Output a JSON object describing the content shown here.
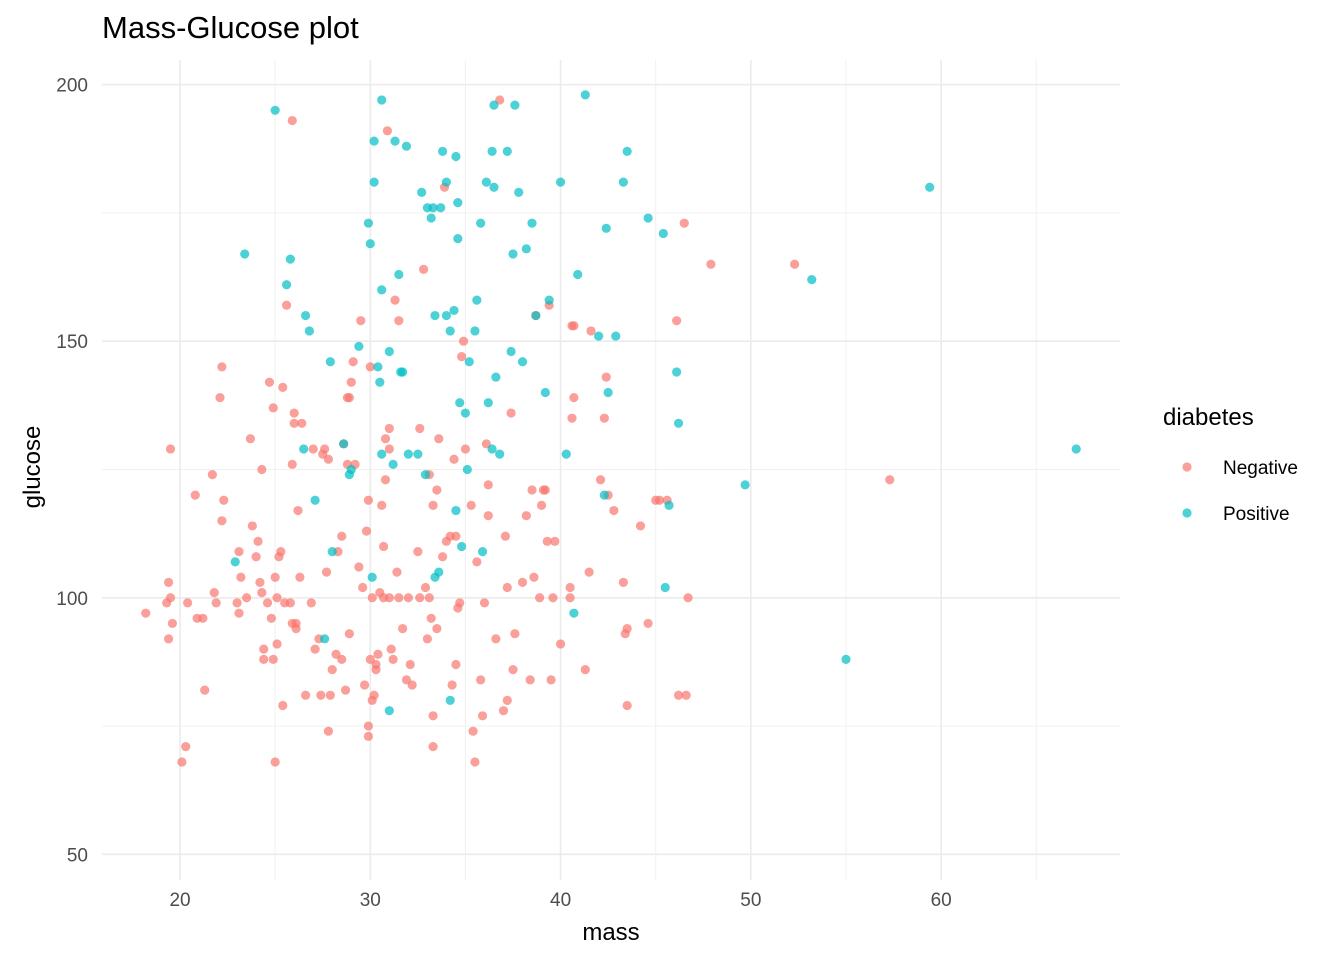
{
  "chart_data": {
    "type": "scatter",
    "title": "Mass-Glucose plot",
    "xlabel": "mass",
    "ylabel": "glucose",
    "xlim": [
      15.9,
      69.4
    ],
    "ylim": [
      45,
      204.8
    ],
    "x_ticks": [
      20,
      30,
      40,
      50,
      60
    ],
    "y_ticks": [
      50,
      100,
      150,
      200
    ],
    "grid": true,
    "legend": {
      "title": "diabetes",
      "position": "right"
    },
    "series": [
      {
        "name": "Negative",
        "color": "#F8766D",
        "points": [
          [
            18.2,
            97
          ],
          [
            19.3,
            99
          ],
          [
            19.4,
            103
          ],
          [
            19.5,
            100
          ],
          [
            19.6,
            95
          ],
          [
            19.4,
            92
          ],
          [
            19.5,
            129
          ],
          [
            20.1,
            68
          ],
          [
            20.3,
            71
          ],
          [
            20.4,
            99
          ],
          [
            20.8,
            120
          ],
          [
            20.9,
            96
          ],
          [
            21.2,
            96
          ],
          [
            21.3,
            82
          ],
          [
            21.7,
            124
          ],
          [
            21.8,
            101
          ],
          [
            21.9,
            99
          ],
          [
            22.1,
            139
          ],
          [
            22.2,
            145
          ],
          [
            22.3,
            119
          ],
          [
            22.2,
            115
          ],
          [
            23.0,
            99
          ],
          [
            23.1,
            97
          ],
          [
            23.1,
            109
          ],
          [
            23.2,
            104
          ],
          [
            23.5,
            100
          ],
          [
            23.7,
            131
          ],
          [
            23.8,
            114
          ],
          [
            24.0,
            108
          ],
          [
            24.1,
            111
          ],
          [
            24.2,
            103
          ],
          [
            24.3,
            101
          ],
          [
            24.3,
            125
          ],
          [
            24.4,
            90
          ],
          [
            24.4,
            88
          ],
          [
            24.6,
            99
          ],
          [
            24.7,
            142
          ],
          [
            24.8,
            96
          ],
          [
            24.9,
            137
          ],
          [
            24.9,
            88
          ],
          [
            25.0,
            68
          ],
          [
            25.0,
            104
          ],
          [
            25.1,
            100
          ],
          [
            25.1,
            91
          ],
          [
            25.2,
            108
          ],
          [
            25.3,
            109
          ],
          [
            25.4,
            79
          ],
          [
            25.4,
            141
          ],
          [
            25.5,
            99
          ],
          [
            25.6,
            157
          ],
          [
            25.8,
            99
          ],
          [
            25.9,
            193
          ],
          [
            25.9,
            126
          ],
          [
            25.9,
            95
          ],
          [
            26.0,
            136
          ],
          [
            26.0,
            134
          ],
          [
            26.1,
            94
          ],
          [
            26.1,
            95
          ],
          [
            26.2,
            117
          ],
          [
            26.3,
            104
          ],
          [
            26.4,
            134
          ],
          [
            26.6,
            81
          ],
          [
            26.9,
            99
          ],
          [
            27.0,
            129
          ],
          [
            27.1,
            90
          ],
          [
            27.3,
            92
          ],
          [
            27.4,
            81
          ],
          [
            27.5,
            128
          ],
          [
            27.6,
            129
          ],
          [
            27.7,
            105
          ],
          [
            27.8,
            127
          ],
          [
            27.8,
            74
          ],
          [
            27.9,
            81
          ],
          [
            28.0,
            86
          ],
          [
            28.2,
            89
          ],
          [
            28.3,
            109
          ],
          [
            28.5,
            88
          ],
          [
            28.5,
            112
          ],
          [
            28.6,
            130
          ],
          [
            28.7,
            82
          ],
          [
            28.8,
            139
          ],
          [
            28.8,
            126
          ],
          [
            28.9,
            93
          ],
          [
            28.9,
            139
          ],
          [
            29.0,
            142
          ],
          [
            29.1,
            146
          ],
          [
            29.2,
            126
          ],
          [
            29.4,
            106
          ],
          [
            29.5,
            154
          ],
          [
            29.6,
            102
          ],
          [
            29.7,
            83
          ],
          [
            29.8,
            113
          ],
          [
            29.9,
            75
          ],
          [
            29.9,
            73
          ],
          [
            29.9,
            119
          ],
          [
            30.0,
            88
          ],
          [
            30.0,
            145
          ],
          [
            30.1,
            80
          ],
          [
            30.1,
            100
          ],
          [
            30.2,
            81
          ],
          [
            30.3,
            87
          ],
          [
            30.3,
            86
          ],
          [
            30.4,
            89
          ],
          [
            30.5,
            101
          ],
          [
            30.6,
            118
          ],
          [
            30.7,
            110
          ],
          [
            30.7,
            100
          ],
          [
            30.8,
            123
          ],
          [
            30.8,
            131
          ],
          [
            30.9,
            191
          ],
          [
            31.0,
            129
          ],
          [
            31.0,
            100
          ],
          [
            31.0,
            133
          ],
          [
            31.1,
            90
          ],
          [
            31.2,
            88
          ],
          [
            31.3,
            158
          ],
          [
            31.4,
            105
          ],
          [
            31.5,
            154
          ],
          [
            31.5,
            100
          ],
          [
            31.7,
            94
          ],
          [
            31.9,
            84
          ],
          [
            32.0,
            100
          ],
          [
            32.1,
            87
          ],
          [
            32.2,
            83
          ],
          [
            32.5,
            109
          ],
          [
            32.6,
            100
          ],
          [
            32.6,
            133
          ],
          [
            32.8,
            164
          ],
          [
            32.9,
            102
          ],
          [
            33.0,
            92
          ],
          [
            33.1,
            100
          ],
          [
            33.1,
            124
          ],
          [
            33.2,
            96
          ],
          [
            33.3,
            71
          ],
          [
            33.3,
            77
          ],
          [
            33.3,
            118
          ],
          [
            33.5,
            94
          ],
          [
            33.5,
            121
          ],
          [
            33.6,
            131
          ],
          [
            33.8,
            108
          ],
          [
            33.9,
            180
          ],
          [
            34.0,
            111
          ],
          [
            34.2,
            112
          ],
          [
            34.3,
            83
          ],
          [
            34.4,
            127
          ],
          [
            34.5,
            87
          ],
          [
            34.5,
            112
          ],
          [
            34.6,
            98
          ],
          [
            34.7,
            99
          ],
          [
            34.8,
            147
          ],
          [
            34.9,
            150
          ],
          [
            35.0,
            129
          ],
          [
            35.3,
            118
          ],
          [
            35.4,
            74
          ],
          [
            35.5,
            68
          ],
          [
            35.6,
            107
          ],
          [
            35.8,
            84
          ],
          [
            35.9,
            77
          ],
          [
            36.0,
            99
          ],
          [
            36.1,
            130
          ],
          [
            36.2,
            122
          ],
          [
            36.2,
            116
          ],
          [
            36.6,
            92
          ],
          [
            36.8,
            197
          ],
          [
            37.0,
            78
          ],
          [
            37.1,
            112
          ],
          [
            37.2,
            80
          ],
          [
            37.2,
            102
          ],
          [
            37.4,
            136
          ],
          [
            37.5,
            86
          ],
          [
            37.6,
            93
          ],
          [
            38.0,
            103
          ],
          [
            38.2,
            116
          ],
          [
            38.4,
            84
          ],
          [
            38.5,
            121
          ],
          [
            38.6,
            104
          ],
          [
            38.7,
            155
          ],
          [
            38.9,
            100
          ],
          [
            39.0,
            118
          ],
          [
            39.1,
            121
          ],
          [
            39.2,
            121
          ],
          [
            39.3,
            111
          ],
          [
            39.4,
            157
          ],
          [
            39.5,
            84
          ],
          [
            39.6,
            100
          ],
          [
            39.7,
            111
          ],
          [
            40.0,
            91
          ],
          [
            40.5,
            100
          ],
          [
            40.5,
            102
          ],
          [
            40.6,
            135
          ],
          [
            40.6,
            153
          ],
          [
            40.7,
            153
          ],
          [
            40.7,
            139
          ],
          [
            41.3,
            86
          ],
          [
            41.5,
            105
          ],
          [
            41.6,
            152
          ],
          [
            42.1,
            123
          ],
          [
            42.3,
            135
          ],
          [
            42.4,
            143
          ],
          [
            42.5,
            120
          ],
          [
            42.8,
            117
          ],
          [
            43.3,
            103
          ],
          [
            43.4,
            93
          ],
          [
            43.5,
            79
          ],
          [
            43.5,
            94
          ],
          [
            44.2,
            114
          ],
          [
            44.6,
            95
          ],
          [
            45.0,
            119
          ],
          [
            45.2,
            119
          ],
          [
            45.6,
            119
          ],
          [
            46.1,
            154
          ],
          [
            46.2,
            81
          ],
          [
            46.5,
            173
          ],
          [
            46.6,
            81
          ],
          [
            46.7,
            100
          ],
          [
            47.9,
            165
          ],
          [
            52.3,
            165
          ],
          [
            57.3,
            123
          ]
        ]
      },
      {
        "name": "Positive",
        "color": "#00BFC4",
        "points": [
          [
            22.9,
            107
          ],
          [
            23.4,
            167
          ],
          [
            25.0,
            195
          ],
          [
            25.6,
            161
          ],
          [
            25.8,
            166
          ],
          [
            26.5,
            129
          ],
          [
            26.6,
            155
          ],
          [
            26.8,
            152
          ],
          [
            27.1,
            119
          ],
          [
            27.6,
            92
          ],
          [
            27.9,
            146
          ],
          [
            28.0,
            109
          ],
          [
            28.6,
            130
          ],
          [
            28.9,
            124
          ],
          [
            29.0,
            125
          ],
          [
            29.4,
            149
          ],
          [
            29.9,
            173
          ],
          [
            30.0,
            169
          ],
          [
            30.1,
            104
          ],
          [
            30.2,
            189
          ],
          [
            30.2,
            181
          ],
          [
            30.4,
            145
          ],
          [
            30.5,
            142
          ],
          [
            30.6,
            197
          ],
          [
            30.6,
            160
          ],
          [
            30.6,
            128
          ],
          [
            31.0,
            148
          ],
          [
            31.0,
            78
          ],
          [
            31.2,
            126
          ],
          [
            31.3,
            189
          ],
          [
            31.5,
            163
          ],
          [
            31.6,
            144
          ],
          [
            31.7,
            144
          ],
          [
            31.9,
            188
          ],
          [
            32.0,
            128
          ],
          [
            32.5,
            128
          ],
          [
            32.7,
            179
          ],
          [
            32.9,
            124
          ],
          [
            33.0,
            176
          ],
          [
            33.2,
            174
          ],
          [
            33.3,
            176
          ],
          [
            33.4,
            155
          ],
          [
            33.4,
            104
          ],
          [
            33.6,
            105
          ],
          [
            33.7,
            176
          ],
          [
            33.8,
            187
          ],
          [
            34.0,
            181
          ],
          [
            34.0,
            155
          ],
          [
            34.2,
            152
          ],
          [
            34.2,
            80
          ],
          [
            34.4,
            156
          ],
          [
            34.5,
            186
          ],
          [
            34.5,
            117
          ],
          [
            34.6,
            170
          ],
          [
            34.6,
            177
          ],
          [
            34.7,
            138
          ],
          [
            34.8,
            110
          ],
          [
            35.0,
            136
          ],
          [
            35.1,
            125
          ],
          [
            35.2,
            146
          ],
          [
            35.5,
            152
          ],
          [
            35.6,
            158
          ],
          [
            35.8,
            173
          ],
          [
            35.9,
            109
          ],
          [
            36.1,
            181
          ],
          [
            36.2,
            138
          ],
          [
            36.4,
            187
          ],
          [
            36.4,
            129
          ],
          [
            36.5,
            180
          ],
          [
            36.5,
            196
          ],
          [
            36.6,
            143
          ],
          [
            36.8,
            128
          ],
          [
            37.2,
            187
          ],
          [
            37.4,
            148
          ],
          [
            37.5,
            167
          ],
          [
            37.6,
            196
          ],
          [
            37.8,
            179
          ],
          [
            38.0,
            146
          ],
          [
            38.2,
            168
          ],
          [
            38.5,
            173
          ],
          [
            38.7,
            155
          ],
          [
            39.2,
            140
          ],
          [
            39.4,
            158
          ],
          [
            40.0,
            181
          ],
          [
            40.3,
            128
          ],
          [
            40.7,
            97
          ],
          [
            40.9,
            163
          ],
          [
            41.3,
            198
          ],
          [
            42.0,
            151
          ],
          [
            42.3,
            120
          ],
          [
            42.4,
            172
          ],
          [
            42.5,
            140
          ],
          [
            42.9,
            151
          ],
          [
            43.3,
            181
          ],
          [
            43.5,
            187
          ],
          [
            44.6,
            174
          ],
          [
            45.4,
            171
          ],
          [
            45.5,
            102
          ],
          [
            45.7,
            118
          ],
          [
            46.1,
            144
          ],
          [
            46.2,
            134
          ],
          [
            49.7,
            122
          ],
          [
            53.2,
            162
          ],
          [
            55.0,
            88
          ],
          [
            59.4,
            180
          ],
          [
            67.1,
            129
          ]
        ]
      }
    ]
  }
}
